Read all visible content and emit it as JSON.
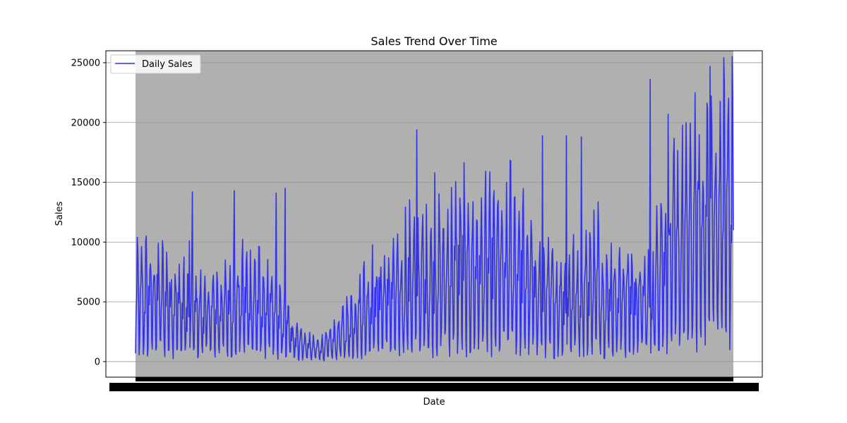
{
  "chart_data": {
    "type": "line",
    "title": "Sales Trend Over Time",
    "xlabel": "Date",
    "ylabel": "Sales",
    "ylim": [
      -1300,
      26000
    ],
    "y_ticks": [
      0,
      5000,
      10000,
      15000,
      20000,
      25000
    ],
    "y_tick_labels": [
      "0",
      "5000",
      "10000",
      "15000",
      "20000",
      "25000"
    ],
    "grid": "y-axis only",
    "legend_position": "top-left",
    "x_tick_labels": "overlapping, unreadable (dense daily dates)",
    "x_points": 1000,
    "series": [
      {
        "name": "Daily Sales",
        "color": "#3333ee",
        "description_trend": "daily values with strong weekly oscillation; envelope rises over time",
        "key_values": [
          {
            "x": 0,
            "y": 700
          },
          {
            "x": 90,
            "y": 10100
          },
          {
            "x": 95,
            "y": 14200
          },
          {
            "x": 165,
            "y": 14300
          },
          {
            "x": 235,
            "y": 14100
          },
          {
            "x": 250,
            "y": 14500
          },
          {
            "x": 470,
            "y": 19400
          },
          {
            "x": 500,
            "y": 15800
          },
          {
            "x": 620,
            "y": 15000
          },
          {
            "x": 680,
            "y": 18900
          },
          {
            "x": 720,
            "y": 18900
          },
          {
            "x": 745,
            "y": 18800
          },
          {
            "x": 860,
            "y": 23600
          },
          {
            "x": 890,
            "y": 20700
          },
          {
            "x": 960,
            "y": 24700
          },
          {
            "x": 990,
            "y": 20200
          },
          {
            "x": 999,
            "y": 11000
          }
        ]
      }
    ]
  }
}
